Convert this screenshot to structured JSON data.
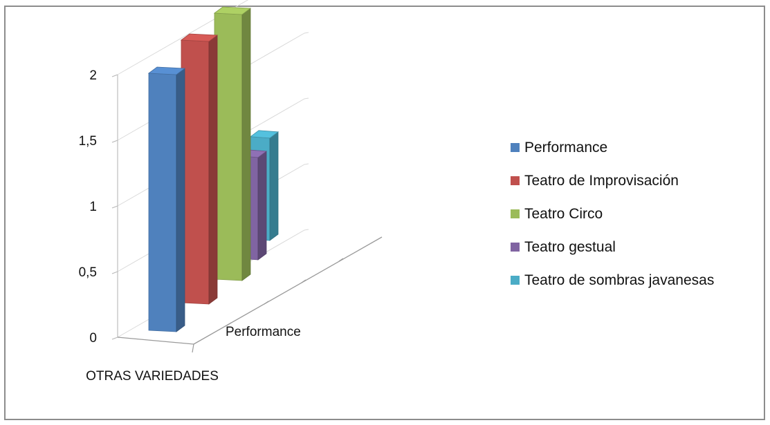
{
  "chart_data": {
    "type": "bar",
    "style": "3d-column",
    "x_category": "OTRAS VARIEDADES",
    "depth_category": "Performance",
    "y_ticks": [
      "0",
      "0,5",
      "1",
      "1,5",
      "2"
    ],
    "ylim": [
      0,
      2
    ],
    "grid": true,
    "legend_position": "right",
    "series": [
      {
        "name": "Performance",
        "value": 2,
        "color": "#4f81bd"
      },
      {
        "name": "Teatro de Improvisación",
        "value": 2,
        "color": "#c0504d"
      },
      {
        "name": "Teatro Circo",
        "value": 2,
        "color": "#9bbb59"
      },
      {
        "name": "Teatro gestual",
        "value": 1,
        "color": "#8064a2"
      },
      {
        "name": "Teatro de sombras javanesas",
        "value": 1,
        "color": "#4bacc6"
      }
    ]
  }
}
